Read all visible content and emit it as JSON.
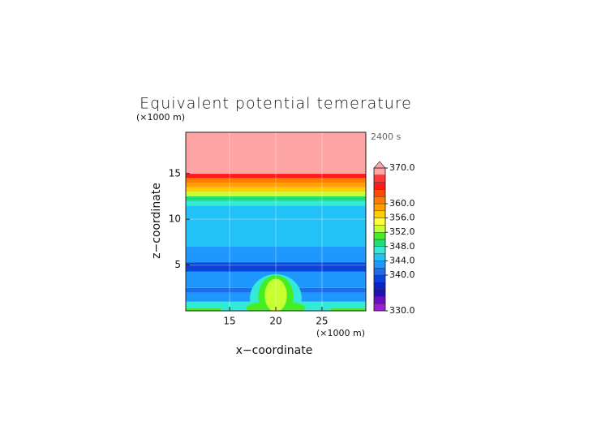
{
  "chart_data": {
    "type": "contour",
    "title": "Equivalent potential temerature",
    "time_label": "2400 s",
    "y_unit": "(×1000 m)",
    "x_unit": "(×1000 m)",
    "xlabel": "x−coordinate",
    "ylabel": "z−coordinate",
    "xlim": [
      10.25,
      29.75
    ],
    "ylim": [
      0,
      19.5
    ],
    "xticks": [
      15,
      20,
      25
    ],
    "yticks": [
      5,
      10,
      15
    ],
    "grid": true,
    "colorbar": {
      "levels": [
        330,
        332,
        334,
        336,
        338,
        340,
        342,
        344,
        346,
        348,
        350,
        352,
        354,
        356,
        358,
        360,
        362,
        364,
        366,
        368,
        370
      ],
      "colors": [
        "#9a1fd6",
        "#6a10c0",
        "#2010b8",
        "#0a22c8",
        "#0a44dc",
        "#1b6cf0",
        "#1e98ff",
        "#22c2f6",
        "#33ead8",
        "#22dd77",
        "#44ee22",
        "#c8ff33",
        "#ffff33",
        "#ffcc00",
        "#ffa000",
        "#ff7a00",
        "#ff4a00",
        "#ff1a1a",
        "#ff3838",
        "#ffa4a4"
      ],
      "ticks": [
        {
          "value": 330,
          "label": "330.0"
        },
        {
          "value": 340,
          "label": "340.0"
        },
        {
          "value": 344,
          "label": "344.0"
        },
        {
          "value": 348,
          "label": "348.0"
        },
        {
          "value": 352,
          "label": "352.0"
        },
        {
          "value": 356,
          "label": "356.0"
        },
        {
          "value": 360,
          "label": "360.0"
        },
        {
          "value": 370,
          "label": "370.0"
        }
      ],
      "extend": "max"
    },
    "field": {
      "bands": [
        {
          "z": [
            0,
            0.3
          ],
          "value": 351
        },
        {
          "z": [
            0.3,
            1
          ],
          "value": 347
        },
        {
          "z": [
            1,
            2
          ],
          "value": 343
        },
        {
          "z": [
            2,
            2.5
          ],
          "value": 341
        },
        {
          "z": [
            2.5,
            4.3
          ],
          "value": 343
        },
        {
          "z": [
            4.3,
            5.3
          ],
          "value": 339
        },
        {
          "z": [
            5.3,
            7
          ],
          "value": 343
        },
        {
          "z": [
            7,
            7.8
          ],
          "value": 344
        },
        {
          "z": [
            7.8,
            11.5
          ],
          "value": 345
        },
        {
          "z": [
            11.5,
            12
          ],
          "value": 347
        },
        {
          "z": [
            12,
            12.5
          ],
          "value": 349
        },
        {
          "z": [
            12.5,
            13
          ],
          "value": 353
        },
        {
          "z": [
            13,
            13.5
          ],
          "value": 357
        },
        {
          "z": [
            13.5,
            14
          ],
          "value": 359
        },
        {
          "z": [
            14,
            14.5
          ],
          "value": 361
        },
        {
          "z": [
            14.5,
            15
          ],
          "value": 365
        },
        {
          "z": [
            15,
            19.5
          ],
          "value": 369
        }
      ],
      "cells": [
        {
          "x": 20,
          "z": 0,
          "rx": 6,
          "rz": 1,
          "value": 347
        },
        {
          "x": 20,
          "z": 1.4,
          "rx": 2.8,
          "rz": 2.6,
          "value": 347
        },
        {
          "x": 20,
          "z": 0.3,
          "rx": 3.2,
          "rz": 0.8,
          "value": 351
        },
        {
          "x": 20,
          "z": 1.6,
          "rx": 1.9,
          "rz": 2.3,
          "value": 351
        },
        {
          "x": 20,
          "z": 1.7,
          "rx": 1.2,
          "rz": 1.8,
          "value": 353
        }
      ]
    }
  }
}
